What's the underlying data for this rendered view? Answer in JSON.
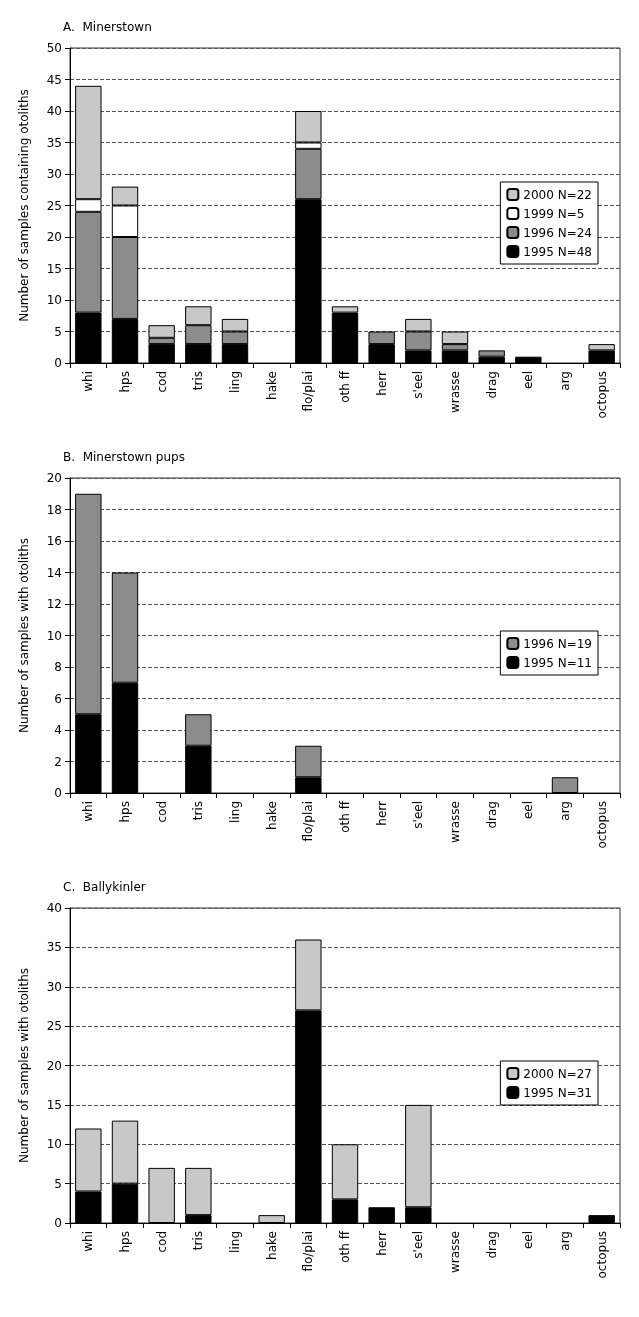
{
  "chart_data": [
    {
      "type": "bar",
      "title": "A.  Minerstown",
      "ylabel": "Number of samples containing otoliths",
      "stacked": true,
      "grid": "y",
      "legend": "right",
      "categories": [
        "whi",
        "hps",
        "cod",
        "tris",
        "ling",
        "hake",
        "flo/plai",
        "oth ff",
        "herr",
        "s'eel",
        "wrasse",
        "drag",
        "eel",
        "arg",
        "octopus"
      ],
      "ylim": [
        0,
        50
      ],
      "yticks": [
        0,
        5,
        10,
        15,
        20,
        25,
        30,
        35,
        40,
        45,
        50
      ],
      "series": [
        {
          "name": "1995 N=48",
          "color": "#000000",
          "values": [
            8,
            7,
            3,
            3,
            3,
            0,
            26,
            8,
            3,
            2,
            2,
            1,
            1,
            0,
            2
          ]
        },
        {
          "name": "1996 N=24",
          "color": "#8c8c8c",
          "values": [
            16,
            13,
            1,
            3,
            2,
            0,
            8,
            0,
            2,
            3,
            1,
            1,
            0,
            0,
            0
          ]
        },
        {
          "name": "1999 N=5",
          "color": "#ffffff",
          "values": [
            2,
            5,
            0,
            0,
            0,
            0,
            1,
            0,
            0,
            0,
            0,
            0,
            0,
            0,
            0
          ]
        },
        {
          "name": "2000 N=22",
          "color": "#c8c8c8",
          "values": [
            18,
            3,
            2,
            3,
            2,
            0,
            5,
            1,
            0,
            2,
            2,
            0,
            0,
            0,
            1
          ]
        }
      ]
    },
    {
      "type": "bar",
      "title": "B.  Minerstown pups",
      "ylabel": "Number of samples with otoliths",
      "stacked": true,
      "grid": "y",
      "legend": "right",
      "categories": [
        "whi",
        "hps",
        "cod",
        "tris",
        "ling",
        "hake",
        "flo/plai",
        "oth ff",
        "herr",
        "s'eel",
        "wrasse",
        "drag",
        "eel",
        "arg",
        "octopus"
      ],
      "ylim": [
        0,
        20
      ],
      "yticks": [
        0,
        2,
        4,
        6,
        8,
        10,
        12,
        14,
        16,
        18,
        20
      ],
      "series": [
        {
          "name": "1995 N=11",
          "color": "#000000",
          "values": [
            5,
            7,
            0,
            3,
            0,
            0,
            1,
            0,
            0,
            0,
            0,
            0,
            0,
            0,
            0
          ]
        },
        {
          "name": "1996 N=19",
          "color": "#8c8c8c",
          "values": [
            14,
            7,
            0,
            2,
            0,
            0,
            2,
            0,
            0,
            0,
            0,
            0,
            0,
            1,
            0
          ]
        }
      ]
    },
    {
      "type": "bar",
      "title": "C.  Ballykinler",
      "ylabel": "Number of samples with otoliths",
      "stacked": true,
      "grid": "y",
      "legend": "right",
      "categories": [
        "whi",
        "hps",
        "cod",
        "tris",
        "ling",
        "hake",
        "flo/plai",
        "oth ff",
        "herr",
        "s'eel",
        "wrasse",
        "drag",
        "eel",
        "arg",
        "octopus"
      ],
      "ylim": [
        0,
        40
      ],
      "yticks": [
        0,
        5,
        10,
        15,
        20,
        25,
        30,
        35,
        40
      ],
      "series": [
        {
          "name": "1995 N=31",
          "color": "#000000",
          "values": [
            4,
            5,
            0,
            1,
            0,
            0,
            27,
            3,
            2,
            2,
            0,
            0,
            0,
            0,
            1
          ]
        },
        {
          "name": "2000 N=27",
          "color": "#c8c8c8",
          "values": [
            8,
            8,
            7,
            6,
            0,
            1,
            9,
            7,
            0,
            13,
            0,
            0,
            0,
            0,
            0
          ]
        }
      ]
    }
  ]
}
